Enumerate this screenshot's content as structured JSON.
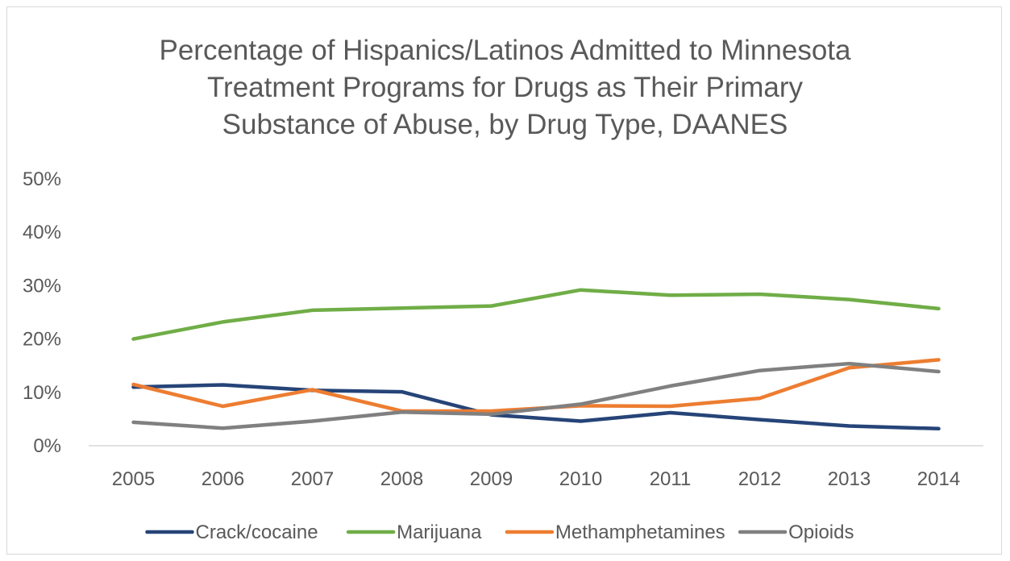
{
  "chart_data": {
    "type": "line",
    "title_lines": [
      "Percentage of Hispanics/Latinos Admitted to Minnesota",
      "Treatment Programs for Drugs as Their Primary",
      "Substance of Abuse, by Drug Type, DAANES"
    ],
    "categories": [
      "2005",
      "2006",
      "2007",
      "2008",
      "2009",
      "2010",
      "2011",
      "2012",
      "2013",
      "2014"
    ],
    "y_ticks": [
      "0%",
      "10%",
      "20%",
      "30%",
      "40%",
      "50%"
    ],
    "ylim": [
      0,
      50
    ],
    "grid": false,
    "legend_position": "bottom",
    "series": [
      {
        "name": "Crack/cocaine",
        "color": "#264478",
        "values": [
          11.0,
          11.4,
          10.4,
          10.1,
          5.8,
          4.6,
          6.2,
          4.9,
          3.7,
          3.2
        ]
      },
      {
        "name": "Marijuana",
        "color": "#70ad47",
        "values": [
          20.0,
          23.2,
          25.4,
          25.8,
          26.2,
          29.2,
          28.2,
          28.4,
          27.4,
          25.7
        ]
      },
      {
        "name": "Methamphetamines",
        "color": "#ed7d31",
        "values": [
          11.5,
          7.4,
          10.5,
          6.5,
          6.5,
          7.5,
          7.4,
          8.9,
          14.6,
          16.1
        ]
      },
      {
        "name": "Opioids",
        "color": "#808080",
        "values": [
          4.4,
          3.3,
          4.6,
          6.3,
          5.9,
          7.8,
          11.2,
          14.1,
          15.4,
          13.9
        ]
      }
    ]
  }
}
